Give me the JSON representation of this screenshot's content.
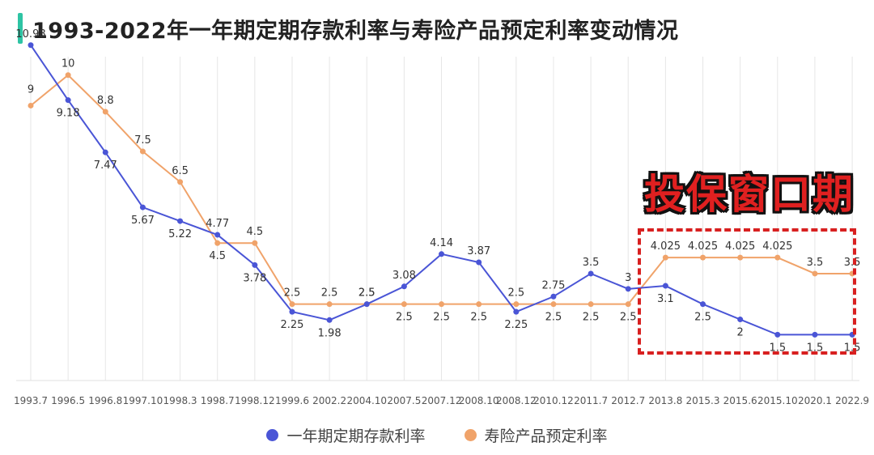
{
  "chart_data": {
    "type": "line",
    "title": "1993-2022年一年期定期存款利率与寿险产品预定利率变动情况",
    "x": [
      "1993.7",
      "1996.5",
      "1996.8",
      "1997.10",
      "1998.3",
      "1998.7",
      "1998.12",
      "1999.6",
      "2002.2",
      "2004.10",
      "2007.5",
      "2007.12",
      "2008.10",
      "2008.12",
      "2010.12",
      "2011.7",
      "2012.7",
      "2013.8",
      "2015.3",
      "2015.6",
      "2015.10",
      "2020.1",
      "2022.9"
    ],
    "series": [
      {
        "name": "一年期定期存款利率",
        "color": "#4a55d6",
        "values": [
          10.98,
          9.18,
          7.47,
          5.67,
          5.22,
          4.77,
          3.78,
          2.25,
          1.98,
          2.5,
          3.08,
          4.14,
          3.87,
          2.25,
          2.75,
          3.5,
          3.0,
          3.1,
          2.5,
          2.0,
          1.5,
          1.5,
          1.5
        ],
        "labels": [
          "10.98",
          "9.18",
          "7.47",
          "5.67",
          "5.22",
          "4.77",
          "3.78",
          "2.25",
          "1.98",
          "2.5",
          "3.08",
          "4.14",
          "3.87",
          "2.25",
          "2.75",
          "3.5",
          "3",
          "3.1",
          "2.5",
          "2",
          "1.5",
          "1.5",
          "1.5"
        ]
      },
      {
        "name": "寿险产品预定利率",
        "color": "#f0a36a",
        "values": [
          9,
          10,
          8.8,
          7.5,
          6.5,
          4.5,
          4.5,
          2.5,
          2.5,
          2.5,
          2.5,
          2.5,
          2.5,
          2.5,
          2.5,
          2.5,
          2.5,
          4.025,
          4.025,
          4.025,
          4.025,
          3.5,
          3.5
        ],
        "labels": [
          "9",
          "10",
          "8.8",
          "7.5",
          "6.5",
          "4.5",
          "4.5",
          "2.5",
          "2.5",
          "2.5",
          "2.5",
          "2.5",
          "2.5",
          "2.5",
          "2.5",
          "2.5",
          "2.5",
          "4.025",
          "4.025",
          "4.025",
          "4.025",
          "3.5",
          "3.5"
        ]
      }
    ],
    "ylim": [
      0,
      11
    ],
    "grid": "vertical",
    "legend": "bottom-center",
    "annotation": "投保窗口期"
  },
  "colors": {
    "accent": "#2ec4a4",
    "annotation": "#e02020",
    "grid": "#e6e6e6"
  }
}
